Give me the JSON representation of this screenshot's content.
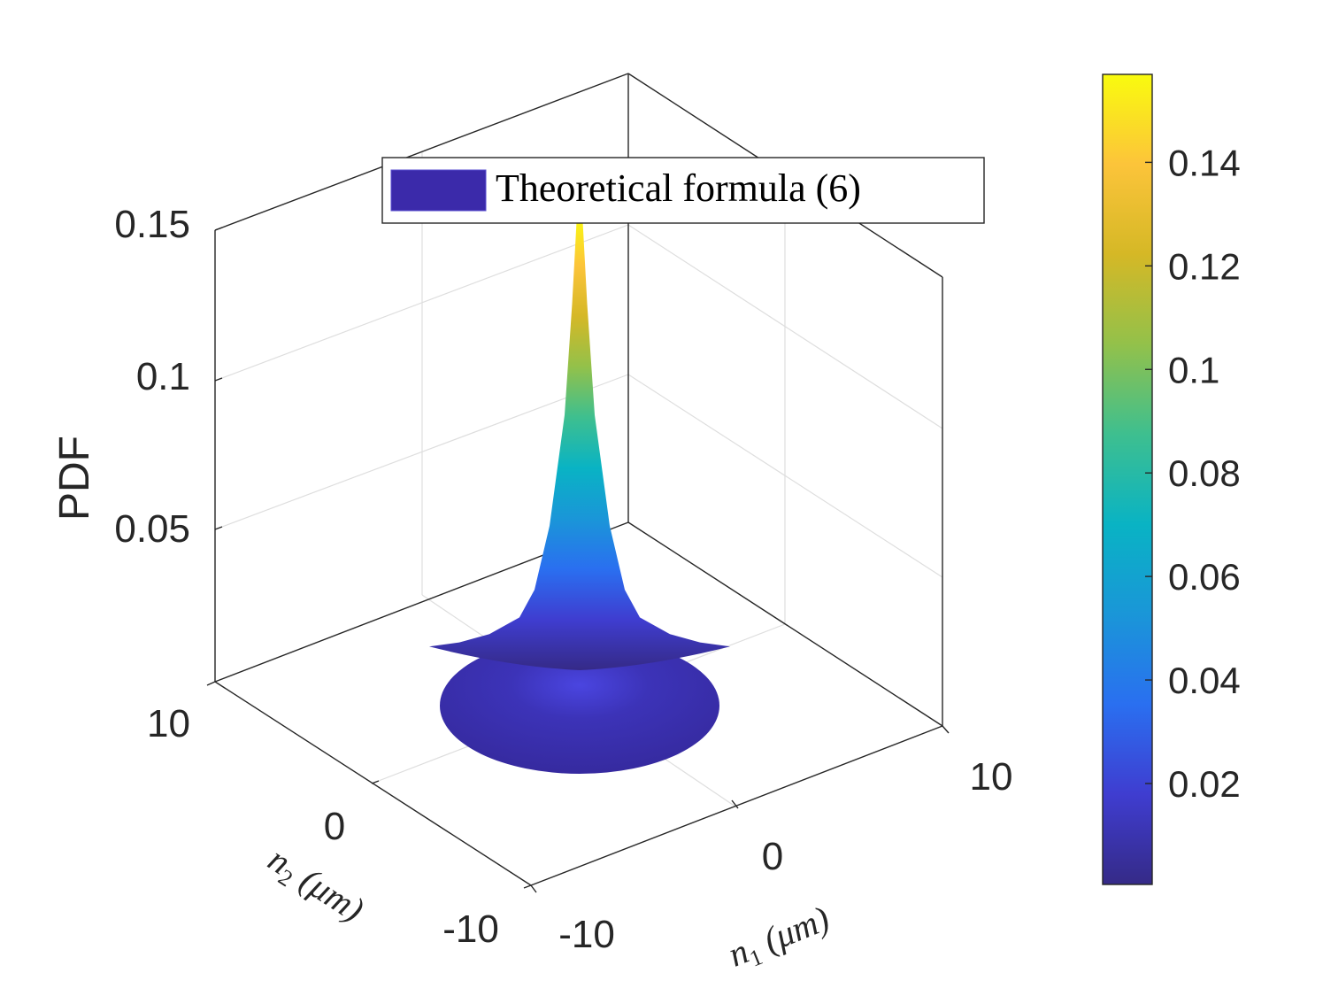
{
  "chart_data": {
    "type": "surface3d",
    "title": "",
    "zlabel": "PDF",
    "xlabel_var": "n",
    "xlabel_sub": "1",
    "xlabel_unit": "(μm)",
    "ylabel_var": "n",
    "ylabel_sub": "2",
    "ylabel_unit": "(μm)",
    "xlim": [
      -10,
      10
    ],
    "ylim": [
      -10,
      10
    ],
    "zlim": [
      0,
      0.15
    ],
    "xticks": [
      "-10",
      "0",
      "10"
    ],
    "yticks": [
      "-10",
      "0",
      "10"
    ],
    "zticks": [
      "0.05",
      "0.1",
      "0.15"
    ],
    "legend": {
      "label": "Theoretical formula (6)",
      "placement": "top"
    },
    "surface": {
      "peak_value": 0.157,
      "peak_location": [
        0,
        0
      ],
      "support_radius": 5,
      "profile_r": [
        0,
        0.25,
        0.5,
        1,
        1.5,
        2,
        3,
        4,
        5
      ],
      "profile_z": [
        0.157,
        0.125,
        0.085,
        0.045,
        0.022,
        0.012,
        0.006,
        0.003,
        0.0015
      ]
    },
    "colorbar": {
      "colormap": "parula",
      "range": [
        0.0005,
        0.157
      ],
      "ticks": [
        "0.02",
        "0.04",
        "0.06",
        "0.08",
        "0.1",
        "0.12",
        "0.14"
      ],
      "tick_values": [
        0.02,
        0.04,
        0.06,
        0.08,
        0.1,
        0.12,
        0.14
      ]
    },
    "colors": {
      "base": "#3a2ba6",
      "legend_swatch": "#3b2aaa",
      "parula": [
        "#352a87",
        "#3f3dd0",
        "#2a6ff0",
        "#1a96d8",
        "#09b3c4",
        "#3ebf8f",
        "#93c14a",
        "#d5b826",
        "#fcc43a",
        "#f9fb0e"
      ]
    }
  }
}
